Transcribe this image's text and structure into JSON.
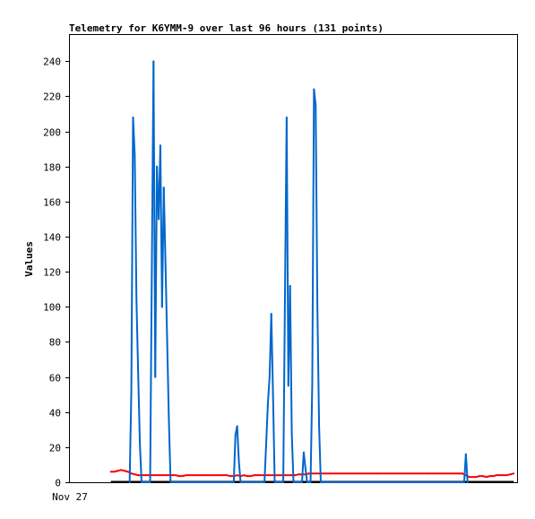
{
  "chart_data": {
    "type": "line",
    "title": "Telemetry for K6YMM-9 over last 96 hours (131 points)",
    "xlabel": "",
    "ylabel": "Values",
    "x_tick_labels": [
      "Nov 27"
    ],
    "xlim": [
      0,
      131
    ],
    "ylim": [
      0,
      255
    ],
    "y_ticks": [
      0,
      20,
      40,
      60,
      80,
      100,
      120,
      140,
      160,
      180,
      200,
      220,
      240
    ],
    "grid": false,
    "legend": "none",
    "series": [
      {
        "color": "#0066cc",
        "x": [
          17.5,
          18,
          18.5,
          19,
          19.5,
          20,
          20.5,
          21,
          21.5,
          22,
          22.5,
          23,
          23.5,
          24,
          24.5,
          25,
          25.5,
          26,
          26.5,
          27,
          27.5,
          28,
          28.5,
          29,
          29.5,
          30,
          30.5,
          31,
          31.5,
          48,
          48.5,
          49,
          49.5,
          50,
          57,
          57.5,
          58,
          58.5,
          59,
          59.5,
          60,
          60.5,
          61,
          62.5,
          63,
          63.5,
          64,
          64.5,
          65,
          65.5,
          66,
          66.5,
          67,
          68,
          68.5,
          69,
          69.5,
          70.5,
          71,
          71.5,
          72,
          72.5,
          73,
          73.5,
          74,
          115.5,
          116,
          116.5
        ],
        "y": [
          0,
          52,
          208,
          186,
          104,
          62,
          22,
          0,
          0,
          0,
          0,
          0,
          0,
          120,
          240,
          60,
          180,
          150,
          192,
          100,
          168,
          125,
          80,
          35,
          0,
          0,
          0,
          0,
          0,
          0,
          27,
          32,
          12,
          0,
          0,
          22,
          45,
          60,
          96,
          50,
          0,
          0,
          0,
          0,
          105,
          208,
          55,
          112,
          28,
          0,
          0,
          0,
          0,
          0,
          17,
          8,
          0,
          0,
          56,
          224,
          215,
          100,
          32,
          0,
          0,
          0,
          16,
          0
        ]
      },
      {
        "color": "#ff0000",
        "x": [
          12,
          13,
          14,
          15,
          16,
          17,
          18,
          19,
          20,
          21,
          22,
          23,
          24,
          25,
          26,
          27,
          28,
          29,
          30,
          31,
          32,
          33,
          34,
          35,
          40,
          45,
          46,
          47,
          48,
          49,
          50,
          51,
          52,
          53,
          54,
          55,
          60,
          65,
          66,
          67,
          68,
          69,
          70,
          72,
          75,
          80,
          85,
          90,
          95,
          100,
          105,
          110,
          114,
          115,
          116,
          117,
          118,
          119,
          120,
          121,
          122,
          123,
          124,
          125,
          126,
          127,
          128,
          129,
          130
        ],
        "y": [
          6,
          6,
          6.5,
          7,
          6.5,
          6,
          5,
          4.5,
          4,
          4,
          4,
          4,
          4,
          4,
          4,
          4,
          4,
          4,
          4,
          4,
          3.5,
          3.5,
          4,
          4,
          4,
          4,
          4,
          3.5,
          3.5,
          4,
          3.5,
          4,
          3.5,
          3.5,
          4,
          4,
          4,
          4,
          4,
          4.5,
          4.5,
          4.5,
          5,
          5,
          5,
          5,
          5,
          5,
          5,
          5,
          5,
          5,
          5,
          5,
          4,
          3,
          3,
          3,
          3.5,
          3.5,
          3,
          3.5,
          3.5,
          4,
          4,
          4,
          4,
          4.5,
          5
        ]
      }
    ]
  }
}
